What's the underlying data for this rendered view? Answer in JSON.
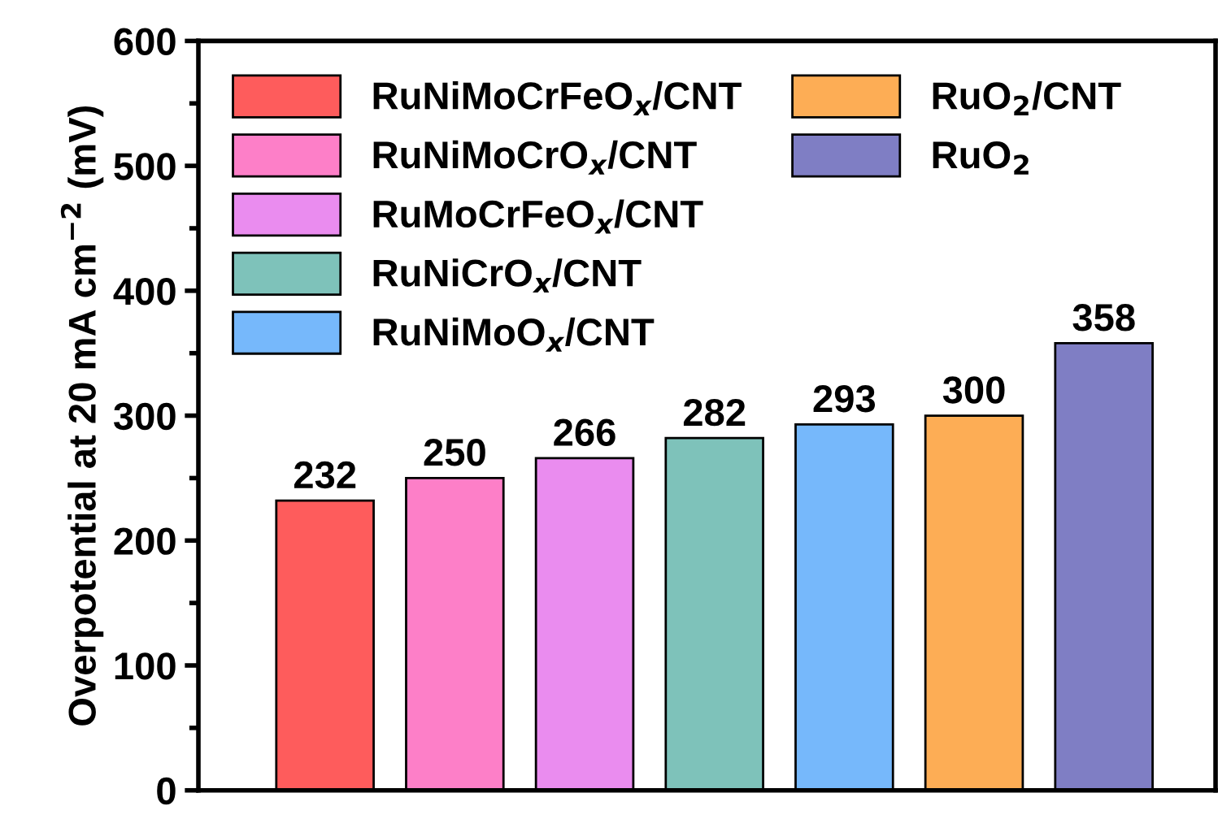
{
  "chart_data": {
    "type": "bar",
    "ylabel": "Overpotential at 20 mA cm$^{−2}$ (mV)",
    "categories": [
      null,
      null,
      null,
      null,
      null,
      null,
      null
    ],
    "series": [
      {
        "name": "RuNiMoCrFeO$_{x}$/CNT",
        "color": "#fe5c5c",
        "values": [
          232,
          null,
          null,
          null,
          null,
          null,
          null
        ]
      },
      {
        "name": "RuNiMoCrO$_{x}$/CNT",
        "color": "#fd7fc8",
        "values": [
          null,
          250,
          null,
          null,
          null,
          null,
          null
        ]
      },
      {
        "name": "RuMoCrFeO$_{x}$/CNT",
        "color": "#ea8cef",
        "values": [
          null,
          null,
          266,
          null,
          null,
          null,
          null
        ]
      },
      {
        "name": "RuNiCrO$_{x}$/CNT",
        "color": "#7ec2ba",
        "values": [
          null,
          null,
          null,
          282,
          null,
          null,
          null
        ]
      },
      {
        "name": "RuNiMoO$_{x}$/CNT",
        "color": "#76b8fb",
        "values": [
          null,
          null,
          null,
          null,
          293,
          null,
          null
        ]
      },
      {
        "name": "RuO$_{2}$/CNT",
        "color": "#fdad55",
        "values": [
          null,
          null,
          null,
          null,
          null,
          300,
          null
        ]
      },
      {
        "name": "RuO$_{2}$",
        "color": "#7f7ec4",
        "values": [
          null,
          null,
          null,
          null,
          null,
          null,
          358
        ]
      }
    ],
    "ylim": [
      0,
      600
    ],
    "yticks": [
      0,
      100,
      200,
      300,
      400,
      500,
      600
    ],
    "data_labels": true,
    "legend": "top left",
    "grid": false
  }
}
